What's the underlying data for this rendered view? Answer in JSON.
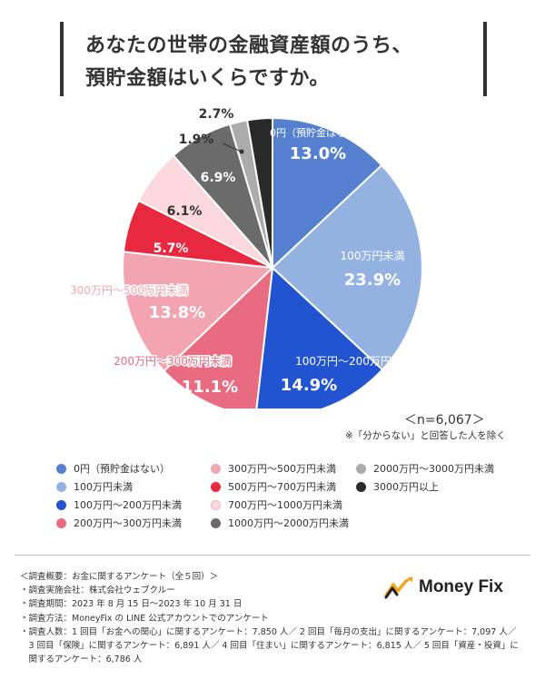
{
  "title": {
    "line1": "あなたの世帯の金融資産額のうち、",
    "line2": "預貯金額はいくらですか。"
  },
  "chart_data": {
    "type": "pie",
    "start": "12 o'clock",
    "direction": "clockwise",
    "slices": [
      {
        "label": "0円（預貯金はない）",
        "value": 13.0,
        "pct_label": "13.0%",
        "color": "#5580CF",
        "text_color": "#ffffff"
      },
      {
        "label": "100万円未満",
        "value": 23.9,
        "pct_label": "23.9%",
        "color": "#93B2E2",
        "text_color": "#ffffff"
      },
      {
        "label": "100万円～200万円未満",
        "value": 14.9,
        "pct_label": "14.9%",
        "color": "#2254D2",
        "text_color": "#ffffff"
      },
      {
        "label": "200万円～300万円未満",
        "value": 11.1,
        "pct_label": "11.1%",
        "color": "#E96B82",
        "text_color": "#ffffff"
      },
      {
        "label": "300万円～500万円未満",
        "value": 13.8,
        "pct_label": "13.8%",
        "color": "#F2A5B1",
        "text_color": "#ffffff"
      },
      {
        "label": "500万円～700万円未満",
        "value": 5.7,
        "pct_label": "5.7%",
        "color": "#E8283E",
        "text_color": "#ffffff"
      },
      {
        "label": "700万円～1000万円未満",
        "value": 6.1,
        "pct_label": "6.1%",
        "color": "#FBD7DE",
        "text_color": "#333333"
      },
      {
        "label": "1000万円～2000万円未満",
        "value": 6.9,
        "pct_label": "6.9%",
        "color": "#6B6B6B",
        "text_color": "#ffffff"
      },
      {
        "label": "2000万円～3000万円未満",
        "value": 1.9,
        "pct_label": "1.9%",
        "color": "#ABABAB",
        "text_color": "#333333"
      },
      {
        "label": "3000万円以上",
        "value": 2.7,
        "pct_label": "2.7%",
        "color": "#2A2A2A",
        "text_color": "#333333"
      }
    ]
  },
  "notes": {
    "n": "＜n=6,067＞",
    "exclude": "※「分からない」と回答した人を除く"
  },
  "survey": {
    "header": "＜調査概要：お金に関するアンケート（全５回）＞",
    "company": "・調査実施会社：株式会社ウェブクルー",
    "period": "・調査期間：2023 年 8 月 15 日～2023 年 10 月 31 日",
    "method": "・調査方法：MoneyFix の LINE 公式アカウントでのアンケート",
    "count1": "・調査人数：1 回目「お金への関心」に関するアンケート：7,850 人／ 2 回目「毎月の支出」に関するアンケート：7,097 人／",
    "count2": "　3 回目「保険」に関するアンケート：6,891 人／ 4 回目「住まい」に関するアンケート：6,815 人／ 5 回目「資産・投資」に",
    "count3": "　関するアンケート：6,786 人"
  },
  "logo": {
    "text": "Money Fix"
  }
}
